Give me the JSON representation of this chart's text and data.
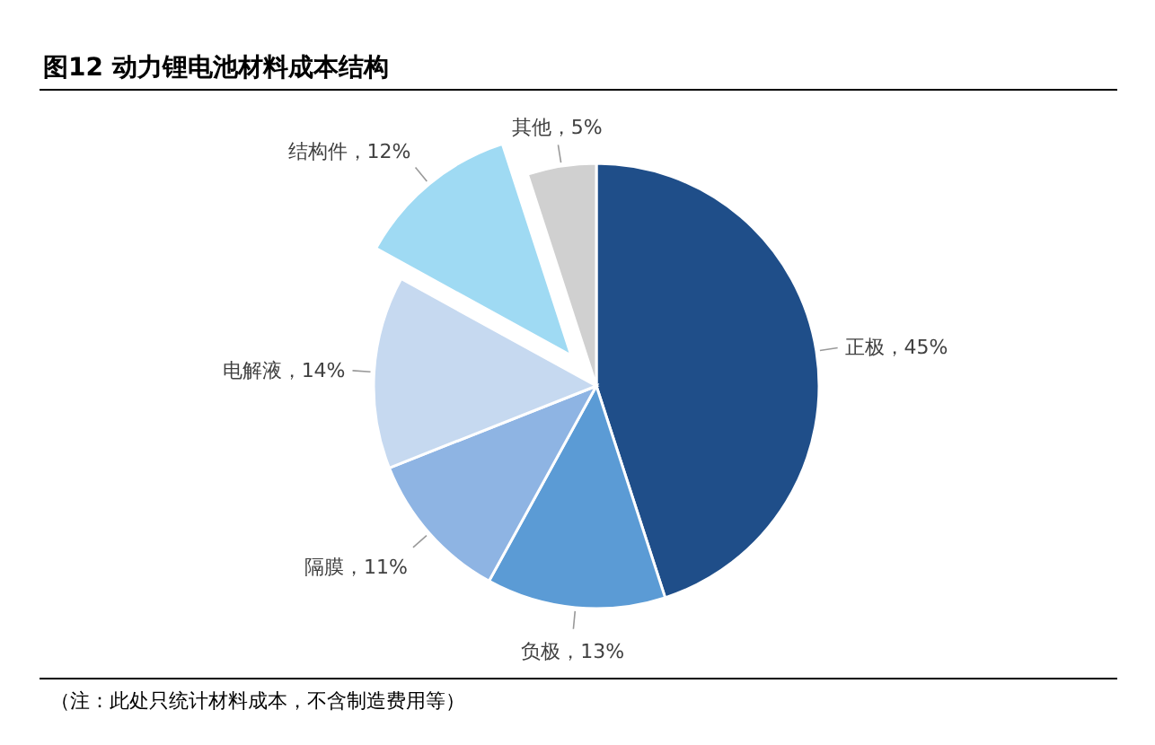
{
  "chart_data": {
    "type": "pie",
    "title": "图12 动力锂电池材料成本结构",
    "categories": [
      "正极",
      "负极",
      "隔膜",
      "电解液",
      "结构件",
      "其他"
    ],
    "values": [
      45,
      13,
      11,
      14,
      12,
      5
    ],
    "value_labels": [
      "45%",
      "13%",
      "11%",
      "14%",
      "12%",
      "5%"
    ],
    "colors": [
      "#1f4e89",
      "#5b9bd5",
      "#8eb4e3",
      "#c6d9f0",
      "#9fdaf3",
      "#d0d0d0"
    ],
    "annotations": [
      "（注：此处只统计材料成本，不含制造费用等）"
    ]
  }
}
